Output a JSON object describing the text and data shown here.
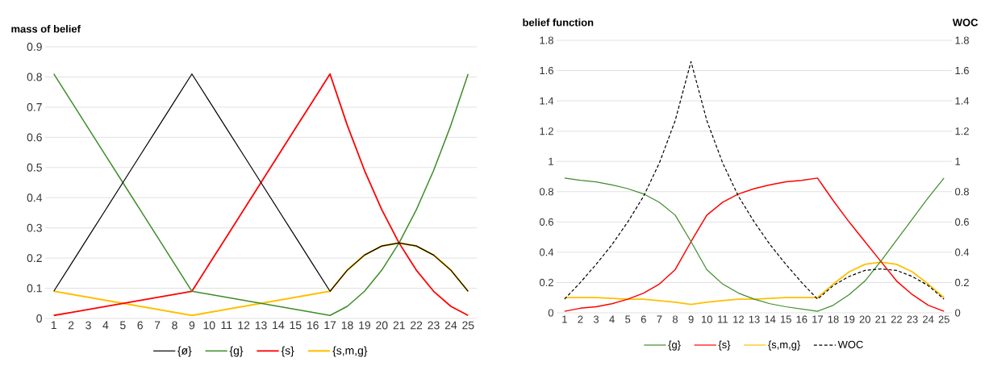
{
  "chart_data": [
    {
      "type": "line",
      "ylabel": "mass of belief",
      "categories": [
        "1",
        "2",
        "3",
        "4",
        "5",
        "6",
        "7",
        "8",
        "9",
        "10",
        "11",
        "12",
        "13",
        "14",
        "15",
        "16",
        "17",
        "18",
        "19",
        "20",
        "21",
        "22",
        "23",
        "24",
        "25"
      ],
      "ylim": [
        0,
        0.9
      ],
      "yticks": [
        0,
        0.1,
        0.2,
        0.3,
        0.4,
        0.5,
        0.6,
        0.7,
        0.8,
        0.9
      ],
      "grid": "y",
      "legend": "bottom",
      "marker": "none",
      "line_style": "solid",
      "series": [
        {
          "name": "{ø}",
          "color": "#000000",
          "values": [
            0.09,
            0.18,
            0.27,
            0.36,
            0.45,
            0.54,
            0.63,
            0.72,
            0.81,
            0.72,
            0.63,
            0.54,
            0.45,
            0.36,
            0.27,
            0.18,
            0.09,
            0.16,
            0.21,
            0.24,
            0.25,
            0.24,
            0.21,
            0.16,
            0.09
          ]
        },
        {
          "name": "{g}",
          "color": "#3c8c28",
          "values": [
            0.81,
            0.72,
            0.63,
            0.54,
            0.45,
            0.36,
            0.27,
            0.18,
            0.09,
            0.08,
            0.07,
            0.06,
            0.05,
            0.04,
            0.03,
            0.02,
            0.01,
            0.04,
            0.09,
            0.16,
            0.25,
            0.36,
            0.49,
            0.64,
            0.81
          ]
        },
        {
          "name": "{s}",
          "color": "#ff0000",
          "values": [
            0.01,
            0.02,
            0.03,
            0.04,
            0.05,
            0.06,
            0.07,
            0.08,
            0.09,
            0.18,
            0.27,
            0.36,
            0.45,
            0.54,
            0.63,
            0.72,
            0.81,
            0.64,
            0.49,
            0.36,
            0.25,
            0.16,
            0.09,
            0.04,
            0.01
          ]
        },
        {
          "name": "{s,m,g}",
          "color": "#ffc000",
          "values": [
            0.09,
            0.08,
            0.07,
            0.06,
            0.05,
            0.04,
            0.03,
            0.02,
            0.01,
            0.02,
            0.03,
            0.04,
            0.05,
            0.06,
            0.07,
            0.08,
            0.09,
            0.16,
            0.21,
            0.24,
            0.25,
            0.24,
            0.21,
            0.16,
            0.09
          ]
        }
      ]
    },
    {
      "type": "line",
      "ylabel": "belief function",
      "y2label": "WOC",
      "categories": [
        "1",
        "2",
        "3",
        "4",
        "5",
        "6",
        "7",
        "8",
        "9",
        "10",
        "11",
        "12",
        "13",
        "14",
        "15",
        "16",
        "17",
        "18",
        "19",
        "20",
        "21",
        "22",
        "23",
        "24",
        "25"
      ],
      "ylim": [
        0,
        1.8
      ],
      "yticks": [
        0,
        0.2,
        0.4,
        0.6,
        0.8,
        1,
        1.2,
        1.4,
        1.6,
        1.8
      ],
      "y2lim": [
        0,
        1.8
      ],
      "y2ticks": [
        0,
        0.2,
        0.4,
        0.6,
        0.8,
        1,
        1.2,
        1.4,
        1.6,
        1.8
      ],
      "grid": "y",
      "legend": "bottom",
      "marker": "none",
      "line_style": "solid",
      "series": [
        {
          "name": "{g}",
          "color": "#3c8c28",
          "values": [
            0.89,
            0.875,
            0.865,
            0.845,
            0.82,
            0.785,
            0.73,
            0.645,
            0.47,
            0.285,
            0.19,
            0.13,
            0.09,
            0.06,
            0.04,
            0.025,
            0.01,
            0.05,
            0.12,
            0.21,
            0.34,
            0.48,
            0.62,
            0.76,
            0.89
          ]
        },
        {
          "name": "{s}",
          "color": "#ff0000",
          "values": [
            0.01,
            0.03,
            0.04,
            0.06,
            0.09,
            0.13,
            0.19,
            0.285,
            0.47,
            0.645,
            0.73,
            0.785,
            0.82,
            0.845,
            0.865,
            0.875,
            0.89,
            0.74,
            0.6,
            0.47,
            0.34,
            0.21,
            0.12,
            0.05,
            0.01
          ]
        },
        {
          "name": "{s,m,g}",
          "color": "#ffc000",
          "values": [
            0.1,
            0.1,
            0.1,
            0.095,
            0.09,
            0.09,
            0.08,
            0.07,
            0.055,
            0.07,
            0.08,
            0.09,
            0.09,
            0.095,
            0.1,
            0.1,
            0.1,
            0.19,
            0.27,
            0.32,
            0.335,
            0.32,
            0.27,
            0.19,
            0.1
          ]
        },
        {
          "name": "WOC",
          "color": "#000000",
          "axis": "y2",
          "line_style": "dashed",
          "values": [
            0.09,
            0.2,
            0.32,
            0.45,
            0.6,
            0.77,
            0.99,
            1.27,
            1.66,
            1.27,
            0.99,
            0.77,
            0.6,
            0.45,
            0.32,
            0.2,
            0.09,
            0.18,
            0.24,
            0.28,
            0.29,
            0.28,
            0.24,
            0.18,
            0.09
          ]
        }
      ]
    }
  ]
}
